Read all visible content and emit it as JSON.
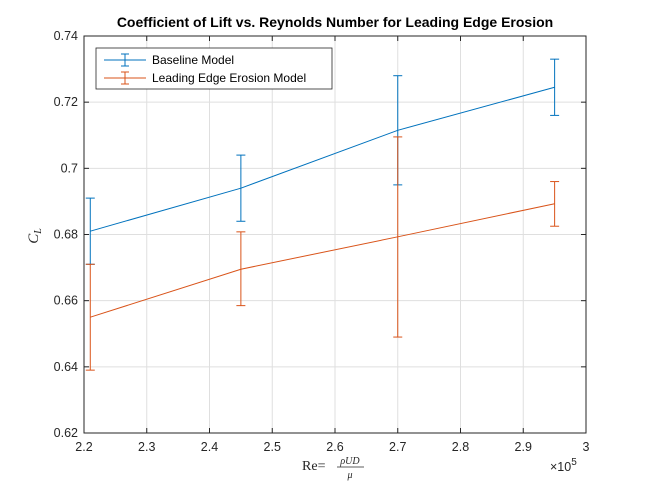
{
  "chart_data": {
    "type": "line",
    "title": "Coefficient of Lift vs. Reynolds Number for Leading Edge Erosion",
    "xlabel_parts": {
      "re": "Re",
      "eq": "=",
      "numerator": "ρUD",
      "denominator": "μ"
    },
    "ylabel_parts": {
      "main": "C",
      "sub": "L"
    },
    "x_exponent_parts": {
      "base": "×10",
      "power": "5"
    },
    "xlim": [
      2.2,
      3.0
    ],
    "ylim": [
      0.62,
      0.74
    ],
    "x_ticks": [
      2.2,
      2.3,
      2.4,
      2.5,
      2.6,
      2.7,
      2.8,
      2.9,
      3.0
    ],
    "x_tick_labels": [
      "2.2",
      "2.3",
      "2.4",
      "2.5",
      "2.6",
      "2.7",
      "2.8",
      "2.9",
      "3"
    ],
    "y_ticks": [
      0.62,
      0.64,
      0.66,
      0.68,
      0.7,
      0.72,
      0.74
    ],
    "y_tick_labels": [
      "0.62",
      "0.64",
      "0.66",
      "0.68",
      "0.7",
      "0.72",
      "0.74"
    ],
    "grid": true,
    "legend_position": "top-left",
    "series": [
      {
        "name": "Baseline Model",
        "color": "#0072BD",
        "x": [
          2.21,
          2.45,
          2.7,
          2.95
        ],
        "y": [
          0.681,
          0.694,
          0.7115,
          0.7245
        ],
        "err_low": [
          0.671,
          0.684,
          0.695,
          0.716
        ],
        "err_high": [
          0.691,
          0.704,
          0.728,
          0.733
        ]
      },
      {
        "name": "Leading Edge Erosion Model",
        "color": "#D95319",
        "x": [
          2.21,
          2.45,
          2.7,
          2.95
        ],
        "y": [
          0.655,
          0.6695,
          0.6793,
          0.6893
        ],
        "err_low": [
          0.639,
          0.6585,
          0.649,
          0.6825
        ],
        "err_high": [
          0.671,
          0.6808,
          0.7095,
          0.696
        ]
      }
    ]
  }
}
